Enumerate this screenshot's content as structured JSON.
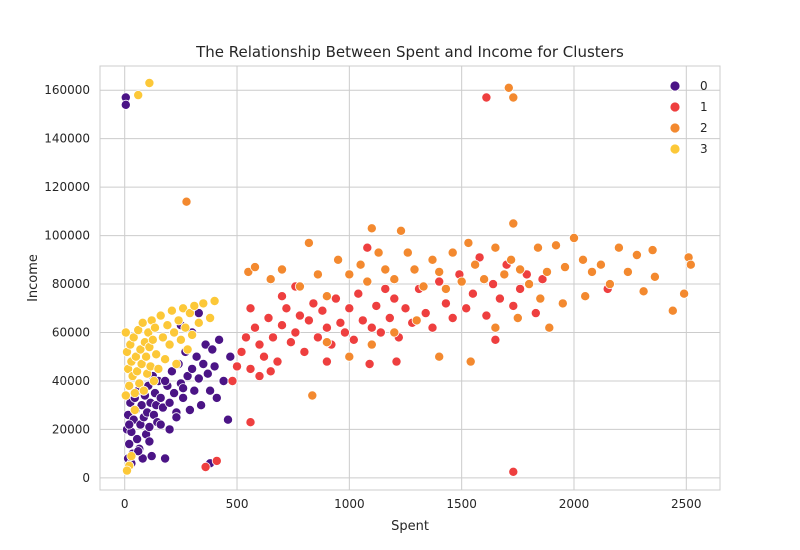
{
  "chart_data": {
    "type": "scatter",
    "title": "The Relationship Between Spent and Income for Clusters",
    "xlabel": "Spent",
    "ylabel": "Income",
    "xlim": [
      -110,
      2650
    ],
    "ylim": [
      -5000,
      170000
    ],
    "xticks": [
      0,
      500,
      1000,
      1500,
      2000,
      2500
    ],
    "xtick_labels": [
      "0",
      "500",
      "1000",
      "1500",
      "2000",
      "2500"
    ],
    "yticks": [
      0,
      20000,
      40000,
      60000,
      80000,
      100000,
      120000,
      140000,
      160000
    ],
    "ytick_labels": [
      "0",
      "20000",
      "40000",
      "60000",
      "80000",
      "100000",
      "120000",
      "140000",
      "160000"
    ],
    "grid": true,
    "legend_position": "top-right",
    "series": [
      {
        "name": "0",
        "color": "#4b1486",
        "points": [
          [
            5,
            157000
          ],
          [
            5,
            154000
          ],
          [
            380,
            6000
          ],
          [
            10,
            20000
          ],
          [
            15,
            26000
          ],
          [
            20,
            14000
          ],
          [
            25,
            31000
          ],
          [
            30,
            19000
          ],
          [
            35,
            10000
          ],
          [
            40,
            24000
          ],
          [
            45,
            33000
          ],
          [
            50,
            28000
          ],
          [
            55,
            16000
          ],
          [
            60,
            36000
          ],
          [
            65,
            12000
          ],
          [
            70,
            22000
          ],
          [
            75,
            30000
          ],
          [
            80,
            8000
          ],
          [
            85,
            25000
          ],
          [
            90,
            34000
          ],
          [
            95,
            18000
          ],
          [
            100,
            27000
          ],
          [
            105,
            38000
          ],
          [
            110,
            21000
          ],
          [
            115,
            31000
          ],
          [
            120,
            9000
          ],
          [
            125,
            42000
          ],
          [
            130,
            26000
          ],
          [
            135,
            35000
          ],
          [
            140,
            30000
          ],
          [
            145,
            23000
          ],
          [
            150,
            40000
          ],
          [
            160,
            33000
          ],
          [
            170,
            29000
          ],
          [
            180,
            8000
          ],
          [
            190,
            38000
          ],
          [
            200,
            31000
          ],
          [
            210,
            44000
          ],
          [
            220,
            35000
          ],
          [
            230,
            27000
          ],
          [
            240,
            47000
          ],
          [
            250,
            39000
          ],
          [
            260,
            33000
          ],
          [
            270,
            52000
          ],
          [
            280,
            42000
          ],
          [
            290,
            28000
          ],
          [
            300,
            45000
          ],
          [
            310,
            36000
          ],
          [
            320,
            50000
          ],
          [
            330,
            41000
          ],
          [
            340,
            30000
          ],
          [
            350,
            47000
          ],
          [
            360,
            55000
          ],
          [
            370,
            43000
          ],
          [
            380,
            36000
          ],
          [
            390,
            53000
          ],
          [
            400,
            46000
          ],
          [
            410,
            33000
          ],
          [
            420,
            57000
          ],
          [
            440,
            40000
          ],
          [
            460,
            24000
          ],
          [
            470,
            50000
          ],
          [
            300,
            60000
          ],
          [
            250,
            63000
          ],
          [
            330,
            68000
          ],
          [
            15,
            8000
          ],
          [
            30,
            6000
          ],
          [
            20,
            22000
          ],
          [
            60,
            11000
          ],
          [
            110,
            15000
          ],
          [
            160,
            22000
          ],
          [
            200,
            20000
          ],
          [
            230,
            25000
          ],
          [
            260,
            37000
          ],
          [
            180,
            40000
          ]
        ]
      },
      {
        "name": "1",
        "color": "#ee3f3f",
        "points": [
          [
            1610,
            157000
          ],
          [
            1730,
            2500
          ],
          [
            360,
            4500
          ],
          [
            410,
            7000
          ],
          [
            560,
            23000
          ],
          [
            480,
            40000
          ],
          [
            500,
            46000
          ],
          [
            520,
            52000
          ],
          [
            540,
            58000
          ],
          [
            560,
            45000
          ],
          [
            580,
            62000
          ],
          [
            600,
            55000
          ],
          [
            620,
            50000
          ],
          [
            640,
            66000
          ],
          [
            660,
            58000
          ],
          [
            680,
            48000
          ],
          [
            700,
            63000
          ],
          [
            720,
            70000
          ],
          [
            740,
            56000
          ],
          [
            760,
            60000
          ],
          [
            780,
            67000
          ],
          [
            800,
            52000
          ],
          [
            820,
            65000
          ],
          [
            840,
            72000
          ],
          [
            860,
            58000
          ],
          [
            880,
            69000
          ],
          [
            900,
            62000
          ],
          [
            920,
            55000
          ],
          [
            940,
            74000
          ],
          [
            960,
            64000
          ],
          [
            980,
            60000
          ],
          [
            1000,
            70000
          ],
          [
            1020,
            57000
          ],
          [
            1040,
            76000
          ],
          [
            1060,
            65000
          ],
          [
            1080,
            95000
          ],
          [
            1100,
            62000
          ],
          [
            1120,
            71000
          ],
          [
            1140,
            60000
          ],
          [
            1160,
            78000
          ],
          [
            1180,
            66000
          ],
          [
            1200,
            74000
          ],
          [
            1220,
            58000
          ],
          [
            1250,
            70000
          ],
          [
            1280,
            64000
          ],
          [
            1310,
            78000
          ],
          [
            1340,
            68000
          ],
          [
            1370,
            62000
          ],
          [
            1400,
            81000
          ],
          [
            1430,
            72000
          ],
          [
            1460,
            66000
          ],
          [
            1490,
            84000
          ],
          [
            1520,
            70000
          ],
          [
            1550,
            76000
          ],
          [
            1580,
            91000
          ],
          [
            1610,
            67000
          ],
          [
            1640,
            80000
          ],
          [
            1670,
            74000
          ],
          [
            1700,
            88000
          ],
          [
            1730,
            71000
          ],
          [
            1760,
            78000
          ],
          [
            1790,
            84000
          ],
          [
            1830,
            68000
          ],
          [
            1860,
            82000
          ],
          [
            2150,
            78000
          ],
          [
            1650,
            57000
          ],
          [
            700,
            75000
          ],
          [
            650,
            44000
          ],
          [
            900,
            48000
          ],
          [
            1090,
            47000
          ],
          [
            1210,
            48000
          ],
          [
            560,
            70000
          ],
          [
            760,
            79000
          ],
          [
            600,
            42000
          ]
        ]
      },
      {
        "name": "2",
        "color": "#f3892f",
        "points": [
          [
            1710,
            161000
          ],
          [
            1730,
            157000
          ],
          [
            275,
            114000
          ],
          [
            1730,
            105000
          ],
          [
            835,
            34000
          ],
          [
            550,
            85000
          ],
          [
            580,
            87000
          ],
          [
            650,
            82000
          ],
          [
            700,
            86000
          ],
          [
            780,
            79000
          ],
          [
            820,
            97000
          ],
          [
            860,
            84000
          ],
          [
            900,
            75000
          ],
          [
            950,
            90000
          ],
          [
            1000,
            84000
          ],
          [
            1050,
            88000
          ],
          [
            1080,
            81000
          ],
          [
            1100,
            103000
          ],
          [
            1130,
            93000
          ],
          [
            1160,
            86000
          ],
          [
            1200,
            82000
          ],
          [
            1230,
            102000
          ],
          [
            1260,
            93000
          ],
          [
            1290,
            86000
          ],
          [
            1330,
            79000
          ],
          [
            1370,
            90000
          ],
          [
            1400,
            85000
          ],
          [
            1430,
            78000
          ],
          [
            1460,
            93000
          ],
          [
            1500,
            81000
          ],
          [
            1530,
            97000
          ],
          [
            1560,
            88000
          ],
          [
            1600,
            82000
          ],
          [
            1650,
            95000
          ],
          [
            1690,
            84000
          ],
          [
            1720,
            90000
          ],
          [
            1760,
            86000
          ],
          [
            1800,
            80000
          ],
          [
            1840,
            95000
          ],
          [
            1880,
            85000
          ],
          [
            1920,
            96000
          ],
          [
            1960,
            87000
          ],
          [
            2000,
            99000
          ],
          [
            2040,
            90000
          ],
          [
            2080,
            85000
          ],
          [
            2120,
            88000
          ],
          [
            2160,
            80000
          ],
          [
            2200,
            95000
          ],
          [
            2240,
            85000
          ],
          [
            2280,
            92000
          ],
          [
            2310,
            77000
          ],
          [
            2350,
            94000
          ],
          [
            2360,
            83000
          ],
          [
            2440,
            69000
          ],
          [
            2490,
            76000
          ],
          [
            2510,
            91000
          ],
          [
            2520,
            88000
          ],
          [
            1100,
            55000
          ],
          [
            1200,
            60000
          ],
          [
            1300,
            65000
          ],
          [
            1400,
            50000
          ],
          [
            1540,
            48000
          ],
          [
            1650,
            62000
          ],
          [
            1750,
            66000
          ],
          [
            1890,
            62000
          ],
          [
            1000,
            50000
          ],
          [
            900,
            56000
          ],
          [
            1850,
            74000
          ],
          [
            1950,
            72000
          ],
          [
            2050,
            75000
          ]
        ]
      },
      {
        "name": "3",
        "color": "#fcc838",
        "points": [
          [
            60,
            158000
          ],
          [
            110,
            163000
          ],
          [
            5,
            60000
          ],
          [
            10,
            52000
          ],
          [
            15,
            45000
          ],
          [
            20,
            38000
          ],
          [
            25,
            55000
          ],
          [
            30,
            48000
          ],
          [
            35,
            42000
          ],
          [
            40,
            58000
          ],
          [
            45,
            35000
          ],
          [
            50,
            50000
          ],
          [
            55,
            44000
          ],
          [
            60,
            61000
          ],
          [
            65,
            39000
          ],
          [
            70,
            53000
          ],
          [
            75,
            47000
          ],
          [
            80,
            64000
          ],
          [
            85,
            36000
          ],
          [
            90,
            56000
          ],
          [
            95,
            50000
          ],
          [
            100,
            43000
          ],
          [
            105,
            60000
          ],
          [
            110,
            54000
          ],
          [
            115,
            46000
          ],
          [
            120,
            65000
          ],
          [
            125,
            57000
          ],
          [
            130,
            40000
          ],
          [
            135,
            62000
          ],
          [
            140,
            51000
          ],
          [
            150,
            45000
          ],
          [
            160,
            67000
          ],
          [
            170,
            58000
          ],
          [
            180,
            49000
          ],
          [
            190,
            63000
          ],
          [
            200,
            55000
          ],
          [
            210,
            69000
          ],
          [
            220,
            60000
          ],
          [
            230,
            47000
          ],
          [
            240,
            65000
          ],
          [
            250,
            57000
          ],
          [
            260,
            70000
          ],
          [
            270,
            62000
          ],
          [
            280,
            53000
          ],
          [
            290,
            68000
          ],
          [
            300,
            59000
          ],
          [
            310,
            71000
          ],
          [
            330,
            64000
          ],
          [
            350,
            72000
          ],
          [
            380,
            66000
          ],
          [
            400,
            73000
          ],
          [
            20,
            5000
          ],
          [
            10,
            3000
          ],
          [
            30,
            9000
          ],
          [
            5,
            34000
          ],
          [
            45,
            28000
          ]
        ]
      }
    ]
  }
}
